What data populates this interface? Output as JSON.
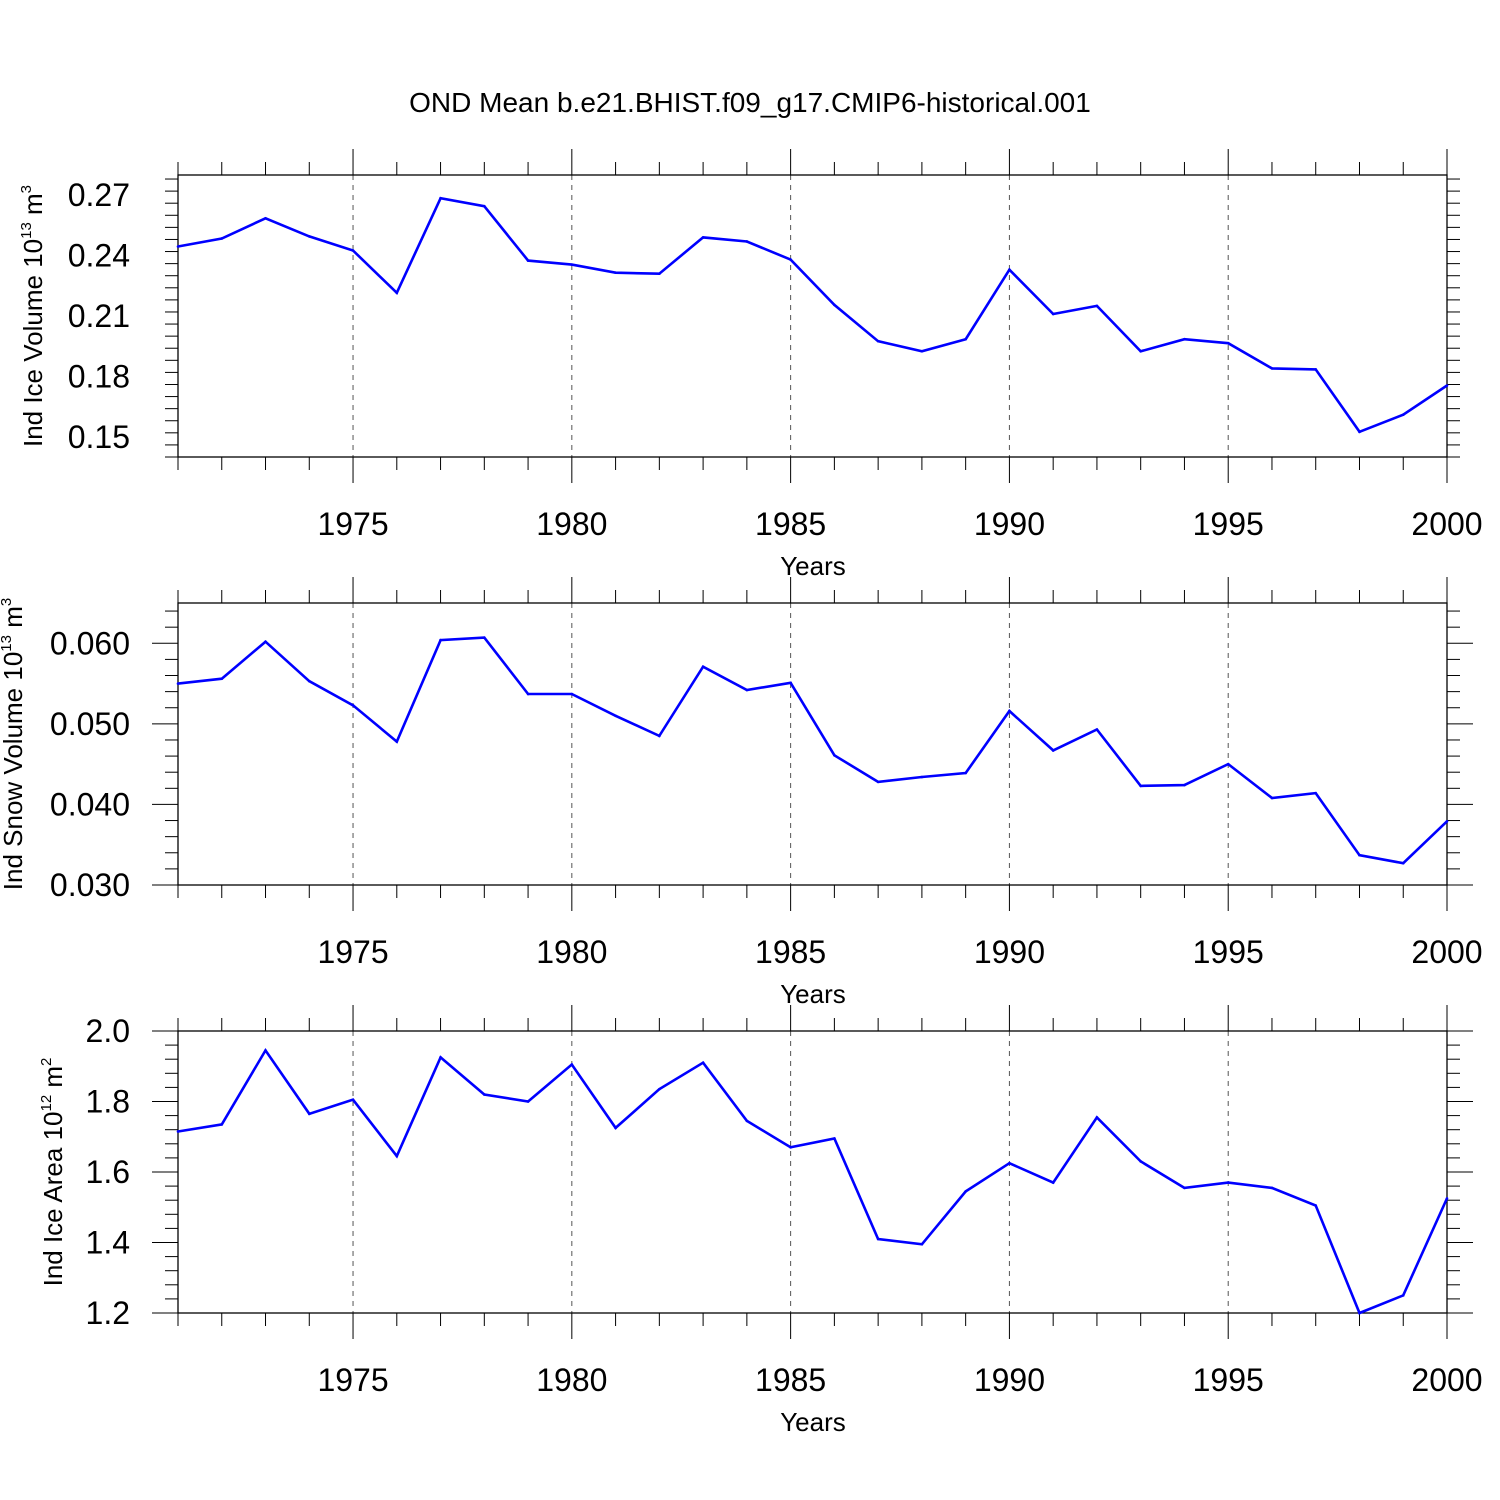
{
  "figure": {
    "title": "OND Mean b.e21.BHIST.f09_g17.CMIP6-historical.001"
  },
  "chart_data": [
    {
      "type": "line",
      "title": "",
      "xlabel": "Years",
      "ylabel": {
        "text": "Ind Ice Volume 10",
        "exp": "13",
        "unit": " m",
        "unit_exp": "3"
      },
      "xlim": [
        1971,
        2000
      ],
      "ylim": [
        0.14,
        0.28
      ],
      "xticks": [
        1975,
        1980,
        1985,
        1990,
        1995,
        2000
      ],
      "xtick_labels": [
        "1975",
        "1980",
        "1985",
        "1990",
        "1995",
        "2000"
      ],
      "yticks": [
        0.15,
        0.18,
        0.21,
        0.24,
        0.27
      ],
      "ytick_labels": [
        "0.15",
        "0.18",
        "0.21",
        "0.24",
        "0.27"
      ],
      "grid": "vertical dashed at major x ticks",
      "color": "#0000ff",
      "series": [
        {
          "x": [
            1971,
            1972,
            1973,
            1974,
            1975,
            1976,
            1977,
            1978,
            1979,
            1980,
            1981,
            1982,
            1983,
            1984,
            1985,
            1986,
            1987,
            1988,
            1989,
            1990,
            1991,
            1992,
            1993,
            1994,
            1995,
            1996,
            1997,
            1998,
            1999,
            2000
          ],
          "values": [
            0.2445,
            0.2485,
            0.2585,
            0.2495,
            0.2425,
            0.2215,
            0.2685,
            0.2645,
            0.2375,
            0.2355,
            0.2315,
            0.231,
            0.249,
            0.247,
            0.238,
            0.2155,
            0.1975,
            0.1925,
            0.1985,
            0.233,
            0.211,
            0.215,
            0.1925,
            0.1985,
            0.1965,
            0.184,
            0.1835,
            0.1525,
            0.161,
            0.1755
          ]
        }
      ]
    },
    {
      "type": "line",
      "title": "",
      "xlabel": "Years",
      "ylabel": {
        "text": "Ind Snow Volume 10",
        "exp": "13",
        "unit": " m",
        "unit_exp": "3"
      },
      "xlim": [
        1971,
        2000
      ],
      "ylim": [
        0.03,
        0.065
      ],
      "xticks": [
        1975,
        1980,
        1985,
        1990,
        1995,
        2000
      ],
      "xtick_labels": [
        "1975",
        "1980",
        "1985",
        "1990",
        "1995",
        "2000"
      ],
      "yticks": [
        0.03,
        0.04,
        0.05,
        0.06
      ],
      "ytick_labels": [
        "0.030",
        "0.040",
        "0.050",
        "0.060"
      ],
      "grid": "vertical dashed at major x ticks",
      "color": "#0000ff",
      "series": [
        {
          "x": [
            1971,
            1972,
            1973,
            1974,
            1975,
            1976,
            1977,
            1978,
            1979,
            1980,
            1981,
            1982,
            1983,
            1984,
            1985,
            1986,
            1987,
            1988,
            1989,
            1990,
            1991,
            1992,
            1993,
            1994,
            1995,
            1996,
            1997,
            1998,
            1999,
            2000
          ],
          "values": [
            0.055,
            0.0556,
            0.0602,
            0.0553,
            0.0523,
            0.0478,
            0.0604,
            0.0607,
            0.0537,
            0.0537,
            0.051,
            0.0485,
            0.0571,
            0.0542,
            0.0551,
            0.0461,
            0.0428,
            0.0434,
            0.0439,
            0.0516,
            0.0467,
            0.0493,
            0.0423,
            0.0424,
            0.045,
            0.0408,
            0.0414,
            0.0337,
            0.0327,
            0.0379
          ]
        }
      ]
    },
    {
      "type": "line",
      "title": "",
      "xlabel": "Years",
      "ylabel": {
        "text": "Ind Ice Area 10",
        "exp": "12",
        "unit": " m",
        "unit_exp": "2"
      },
      "xlim": [
        1971,
        2000
      ],
      "ylim": [
        1.2,
        2.0
      ],
      "xticks": [
        1975,
        1980,
        1985,
        1990,
        1995,
        2000
      ],
      "xtick_labels": [
        "1975",
        "1980",
        "1985",
        "1990",
        "1995",
        "2000"
      ],
      "yticks": [
        1.2,
        1.4,
        1.6,
        1.8,
        2.0
      ],
      "ytick_labels": [
        "1.2",
        "1.4",
        "1.6",
        "1.8",
        "2.0"
      ],
      "grid": "vertical dashed at major x ticks",
      "color": "#0000ff",
      "series": [
        {
          "x": [
            1971,
            1972,
            1973,
            1974,
            1975,
            1976,
            1977,
            1978,
            1979,
            1980,
            1981,
            1982,
            1983,
            1984,
            1985,
            1986,
            1987,
            1988,
            1989,
            1990,
            1991,
            1992,
            1993,
            1994,
            1995,
            1996,
            1997,
            1998,
            1999,
            2000
          ],
          "values": [
            1.715,
            1.735,
            1.945,
            1.765,
            1.805,
            1.645,
            1.925,
            1.82,
            1.8,
            1.905,
            1.725,
            1.835,
            1.91,
            1.745,
            1.67,
            1.695,
            1.41,
            1.395,
            1.545,
            1.625,
            1.57,
            1.755,
            1.63,
            1.555,
            1.57,
            1.555,
            1.505,
            1.2,
            1.25,
            1.525
          ]
        }
      ]
    }
  ]
}
